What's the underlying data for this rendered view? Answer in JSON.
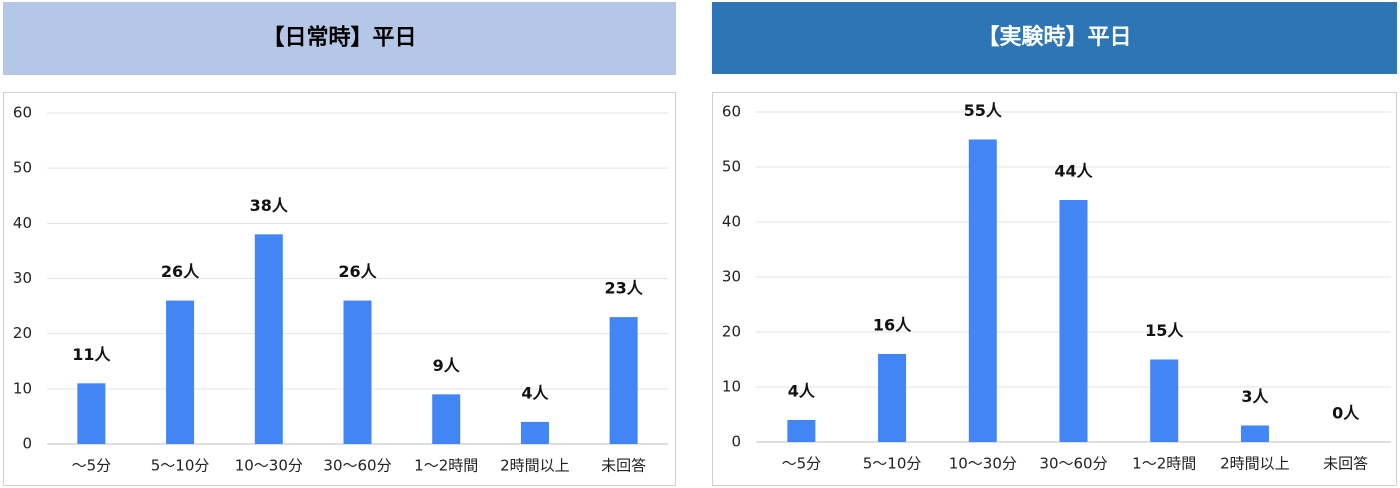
{
  "chart_data": [
    {
      "type": "bar",
      "title": "【日常時】平日",
      "title_background": "#b4c7e7",
      "title_color": "#000000",
      "categories": [
        "～5分",
        "5～10分",
        "10～30分",
        "30～60分",
        "1～2時間",
        "2時間以上",
        "未回答"
      ],
      "values": [
        11,
        26,
        38,
        26,
        9,
        4,
        23
      ],
      "value_labels": [
        "11人",
        "26人",
        "38人",
        "26人",
        "9人",
        "4人",
        "23人"
      ],
      "color": "#4285f4",
      "ylim": [
        0,
        60
      ],
      "yticks": [
        0,
        10,
        20,
        30,
        40,
        50,
        60
      ],
      "grid": true
    },
    {
      "type": "bar",
      "title": "【実験時】平日",
      "title_background": "#2e75b6",
      "title_color": "#ffffff",
      "categories": [
        "～5分",
        "5～10分",
        "10～30分",
        "30～60分",
        "1～2時間",
        "2時間以上",
        "未回答"
      ],
      "values": [
        4,
        16,
        55,
        44,
        15,
        3,
        0
      ],
      "value_labels": [
        "4人",
        "16人",
        "55人",
        "44人",
        "15人",
        "3人",
        "0人"
      ],
      "color": "#4285f4",
      "ylim": [
        0,
        60
      ],
      "yticks": [
        0,
        10,
        20,
        30,
        40,
        50,
        60
      ],
      "grid": true
    }
  ]
}
